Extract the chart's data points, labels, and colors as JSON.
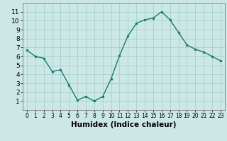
{
  "x": [
    0,
    1,
    2,
    3,
    4,
    5,
    6,
    7,
    8,
    9,
    10,
    11,
    12,
    13,
    14,
    15,
    16,
    17,
    18,
    19,
    20,
    21,
    22,
    23
  ],
  "y": [
    6.7,
    6.0,
    5.8,
    4.3,
    4.5,
    2.8,
    1.1,
    1.5,
    1.0,
    1.5,
    3.5,
    6.1,
    8.3,
    9.7,
    10.1,
    10.3,
    11.0,
    10.1,
    8.7,
    7.3,
    6.8,
    6.5,
    6.0,
    5.5
  ],
  "xlabel": "Humidex (Indice chaleur)",
  "ylim": [
    0,
    12
  ],
  "xlim": [
    -0.5,
    23.5
  ],
  "yticks": [
    1,
    2,
    3,
    4,
    5,
    6,
    7,
    8,
    9,
    10,
    11
  ],
  "xticks": [
    0,
    1,
    2,
    3,
    4,
    5,
    6,
    7,
    8,
    9,
    10,
    11,
    12,
    13,
    14,
    15,
    16,
    17,
    18,
    19,
    20,
    21,
    22,
    23
  ],
  "line_color": "#1a7a6a",
  "marker_color": "#1a7a6a",
  "bg_color": "#cce8e6",
  "grid_color": "#aad4d0",
  "xlabel_fontsize": 7.5,
  "tick_fontsize_x": 5.5,
  "tick_fontsize_y": 6.5
}
